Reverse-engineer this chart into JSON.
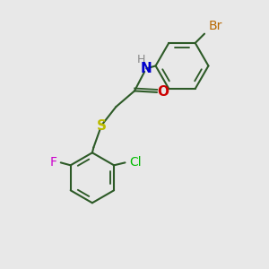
{
  "background_color": "#e8e8e8",
  "bond_color": "#2d5a27",
  "atom_colors": {
    "Br": "#b86800",
    "N": "#0000cc",
    "H": "#888888",
    "O": "#cc0000",
    "S": "#bbbb00",
    "Cl": "#00bb00",
    "F": "#cc00cc"
  },
  "bond_width": 1.5,
  "font_size": 10,
  "figsize": [
    3.0,
    3.0
  ],
  "dpi": 100,
  "xlim": [
    0,
    10
  ],
  "ylim": [
    0,
    10
  ]
}
